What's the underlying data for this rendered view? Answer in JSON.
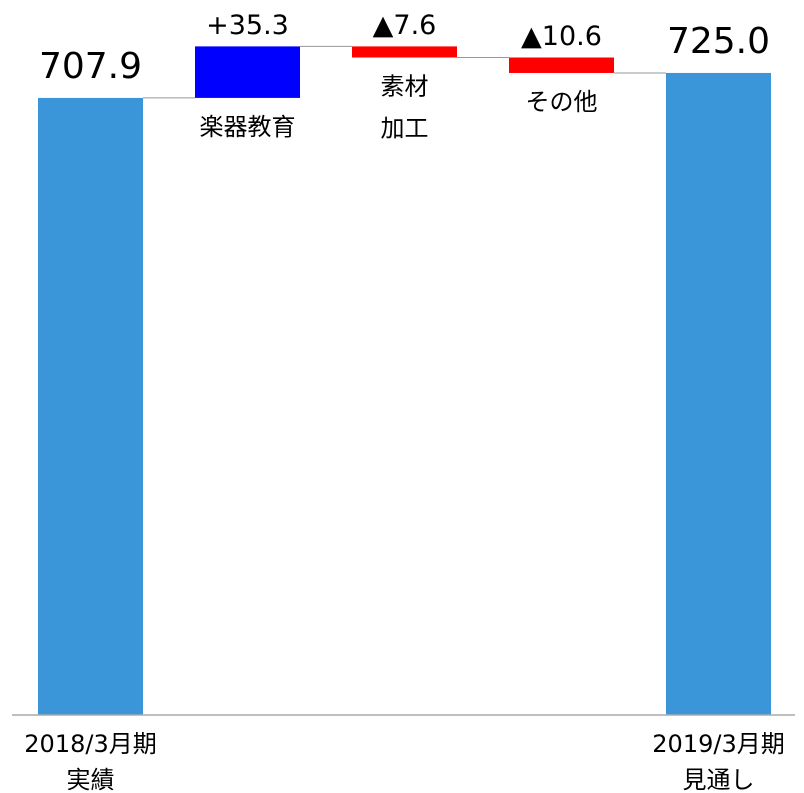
{
  "chart_data": {
    "type": "waterfall",
    "categories": [
      [
        "2018/3月期",
        "実績"
      ],
      [
        "楽器教育"
      ],
      [
        "素材",
        "加工"
      ],
      [
        "その他"
      ],
      [
        "2019/3月期",
        "見通し"
      ]
    ],
    "measure": [
      "absolute",
      "relative",
      "relative",
      "relative",
      "total"
    ],
    "values": [
      707.9,
      35.3,
      -7.6,
      -10.6,
      725.0
    ],
    "value_labels": [
      "707.9",
      "+35.3",
      "▲7.6",
      "▲10.6",
      "725.0"
    ],
    "colors": {
      "total": "#3a96d8",
      "increase": "#0000ff",
      "decrease": "#ff0000"
    },
    "ylim": [
      285,
      775
    ]
  }
}
